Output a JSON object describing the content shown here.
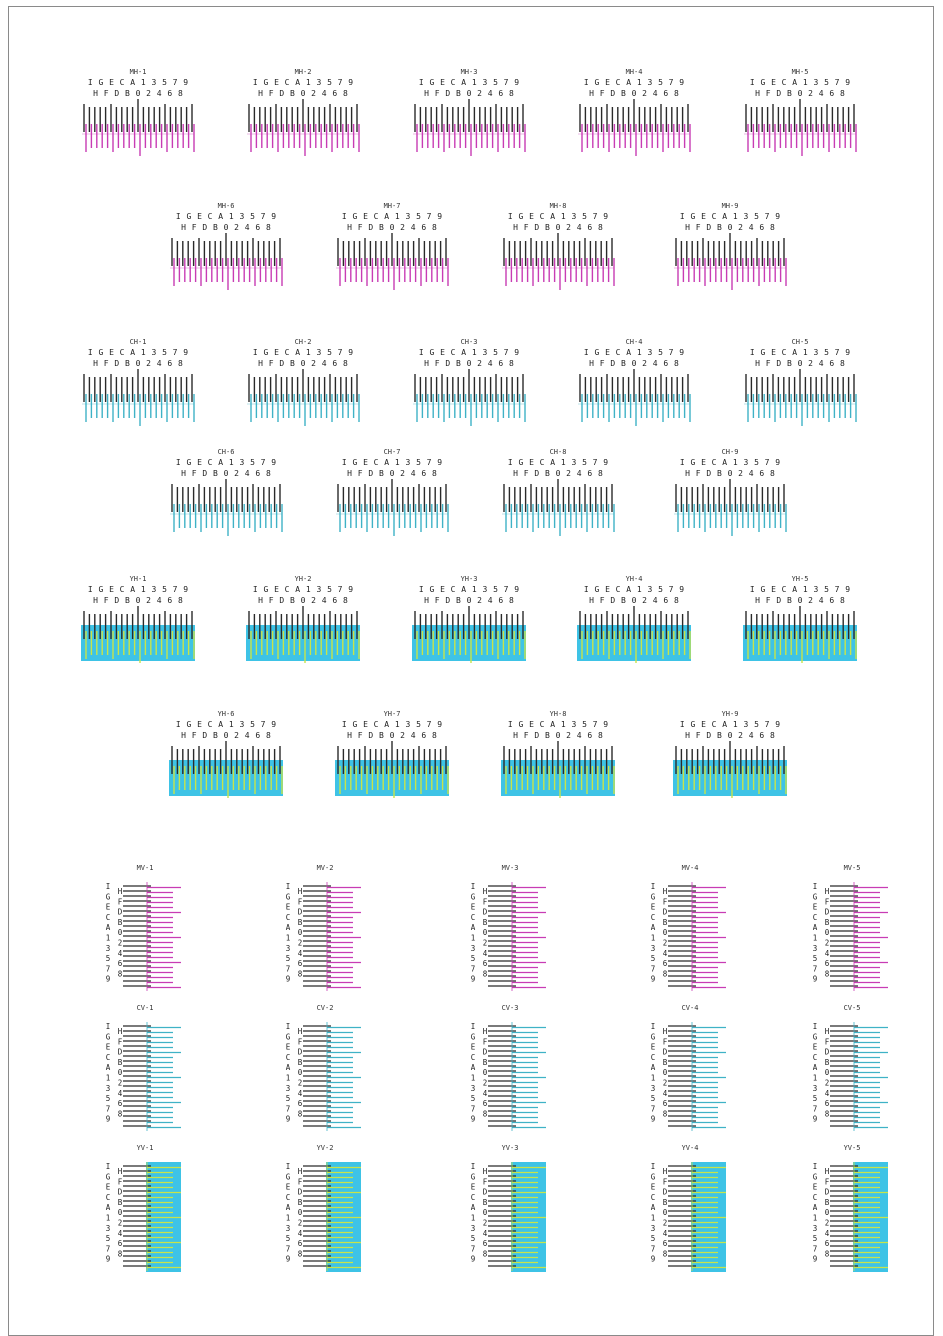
{
  "colors": {
    "black": "#2a2a2a",
    "magenta": "#c83cb4",
    "cyan": "#3fb2c6",
    "cyan_fill": "#3ec3e6",
    "yellow": "#c8e44a"
  },
  "scales": {
    "top_row": [
      "I",
      "G",
      "E",
      "C",
      "A",
      "1",
      "3",
      "5",
      "7",
      "9"
    ],
    "bottom_row": [
      "H",
      "F",
      "D",
      "B",
      "0",
      "2",
      "4",
      "6",
      "8"
    ]
  },
  "horizontal_patterns": [
    {
      "group": "magenta",
      "rows": [
        [
          "MH-1",
          "MH-2",
          "MH-3",
          "MH-4",
          "MH-5"
        ],
        [
          "MH-6",
          "MH-7",
          "MH-8",
          "MH-9"
        ]
      ]
    },
    {
      "group": "cyan",
      "rows": [
        [
          "CH-1",
          "CH-2",
          "CH-3",
          "CH-4",
          "CH-5"
        ],
        [
          "CH-6",
          "CH-7",
          "CH-8",
          "CH-9"
        ]
      ]
    },
    {
      "group": "yellow",
      "rows": [
        [
          "YH-1",
          "YH-2",
          "YH-3",
          "YH-4",
          "YH-5"
        ],
        [
          "YH-6",
          "YH-7",
          "YH-8",
          "YH-9"
        ]
      ]
    }
  ],
  "vertical_patterns": [
    {
      "group": "magenta",
      "labels": [
        "MV-1",
        "MV-2",
        "MV-3",
        "MV-4",
        "MV-5"
      ]
    },
    {
      "group": "cyan",
      "labels": [
        "CV-1",
        "CV-2",
        "CV-3",
        "CV-4",
        "CV-5"
      ]
    },
    {
      "group": "yellow",
      "labels": [
        "YV-1",
        "YV-2",
        "YV-3",
        "YV-4",
        "YV-5"
      ]
    }
  ]
}
